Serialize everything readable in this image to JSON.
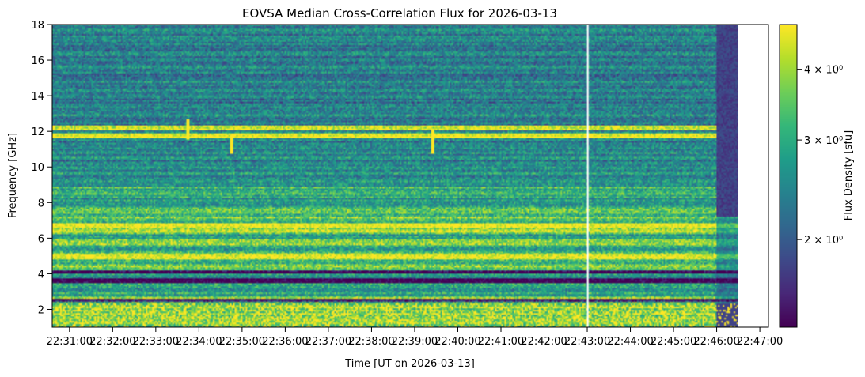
{
  "chart_data": {
    "type": "heatmap",
    "title": "EOVSA Median Cross-Correlation Flux for 2026-03-13",
    "xlabel": "Time [UT on 2026-03-13]",
    "ylabel": "Frequency [GHz]",
    "colorbar_label": "Flux Density [sfu]",
    "colormap": "viridis",
    "color_scale": "log",
    "colorbar_ticks": [
      {
        "value": 4,
        "label": "4 × 10⁰"
      },
      {
        "value": 3,
        "label": "3 × 10⁰"
      },
      {
        "value": 2,
        "label": "2 × 10⁰"
      }
    ],
    "colorbar_range": [
      1.4,
      4.8
    ],
    "x_tick_labels": [
      "22:31:00",
      "22:32:00",
      "22:33:00",
      "22:34:00",
      "22:35:00",
      "22:36:00",
      "22:37:00",
      "22:38:00",
      "22:39:00",
      "22:40:00",
      "22:41:00",
      "22:42:00",
      "22:43:00",
      "22:44:00",
      "22:45:00",
      "22:46:00",
      "22:47:00"
    ],
    "xlim": [
      "22:30:36",
      "22:47:12"
    ],
    "data_end_time": "22:46:30",
    "y_ticks": [
      2,
      4,
      6,
      8,
      10,
      12,
      14,
      16,
      18
    ],
    "ylim": [
      1.0,
      18.0
    ],
    "grid": false,
    "features": [
      {
        "kind": "gap",
        "time": "22:43:00",
        "description": "vertical white line (no data)"
      },
      {
        "kind": "rfi_line",
        "frequency": 11.75
      },
      {
        "kind": "rfi_line",
        "frequency": 12.2
      },
      {
        "kind": "bright_band",
        "frequency": 6.7
      },
      {
        "kind": "bright_band",
        "frequency": 4.9
      },
      {
        "kind": "dark_band",
        "frequency": 3.6
      },
      {
        "kind": "dark_band",
        "frequency": 4.1
      },
      {
        "kind": "dark_band",
        "frequency": 2.5
      },
      {
        "kind": "spike",
        "time": "22:33:45",
        "frequency_range": [
          11.5,
          12.7
        ]
      },
      {
        "kind": "spike",
        "time": "22:34:45",
        "frequency_range": [
          10.7,
          11.8
        ]
      },
      {
        "kind": "spike",
        "time": "22:39:25",
        "frequency_range": [
          10.7,
          12.2
        ]
      }
    ]
  }
}
